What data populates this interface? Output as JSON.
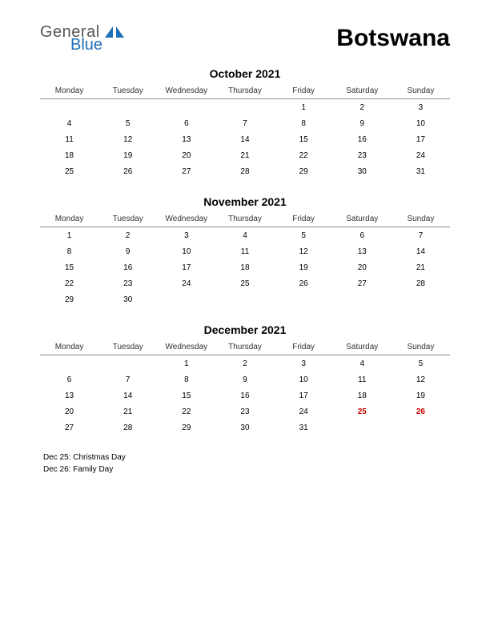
{
  "logo": {
    "text1": "General",
    "text2": "Blue"
  },
  "country": "Botswana",
  "day_headers": [
    "Monday",
    "Tuesday",
    "Wednesday",
    "Thursday",
    "Friday",
    "Saturday",
    "Sunday"
  ],
  "months": [
    {
      "title": "October 2021",
      "weeks": [
        [
          "",
          "",
          "",
          "",
          "1",
          "2",
          "3"
        ],
        [
          "4",
          "5",
          "6",
          "7",
          "8",
          "9",
          "10"
        ],
        [
          "11",
          "12",
          "13",
          "14",
          "15",
          "16",
          "17"
        ],
        [
          "18",
          "19",
          "20",
          "21",
          "22",
          "23",
          "24"
        ],
        [
          "25",
          "26",
          "27",
          "28",
          "29",
          "30",
          "31"
        ]
      ],
      "holidays": []
    },
    {
      "title": "November 2021",
      "weeks": [
        [
          "1",
          "2",
          "3",
          "4",
          "5",
          "6",
          "7"
        ],
        [
          "8",
          "9",
          "10",
          "11",
          "12",
          "13",
          "14"
        ],
        [
          "15",
          "16",
          "17",
          "18",
          "19",
          "20",
          "21"
        ],
        [
          "22",
          "23",
          "24",
          "25",
          "26",
          "27",
          "28"
        ],
        [
          "29",
          "30",
          "",
          "",
          "",
          "",
          ""
        ]
      ],
      "holidays": []
    },
    {
      "title": "December 2021",
      "weeks": [
        [
          "",
          "",
          "1",
          "2",
          "3",
          "4",
          "5"
        ],
        [
          "6",
          "7",
          "8",
          "9",
          "10",
          "11",
          "12"
        ],
        [
          "13",
          "14",
          "15",
          "16",
          "17",
          "18",
          "19"
        ],
        [
          "20",
          "21",
          "22",
          "23",
          "24",
          "25",
          "26"
        ],
        [
          "27",
          "28",
          "29",
          "30",
          "31",
          "",
          ""
        ]
      ],
      "holidays": [
        "25",
        "26"
      ]
    }
  ],
  "holiday_list": [
    "Dec 25: Christmas Day",
    "Dec 26: Family Day"
  ],
  "colors": {
    "holiday_text": "#cc0000",
    "logo_blue": "#1e6fb8",
    "text": "#000000",
    "header_border": "#888888"
  }
}
